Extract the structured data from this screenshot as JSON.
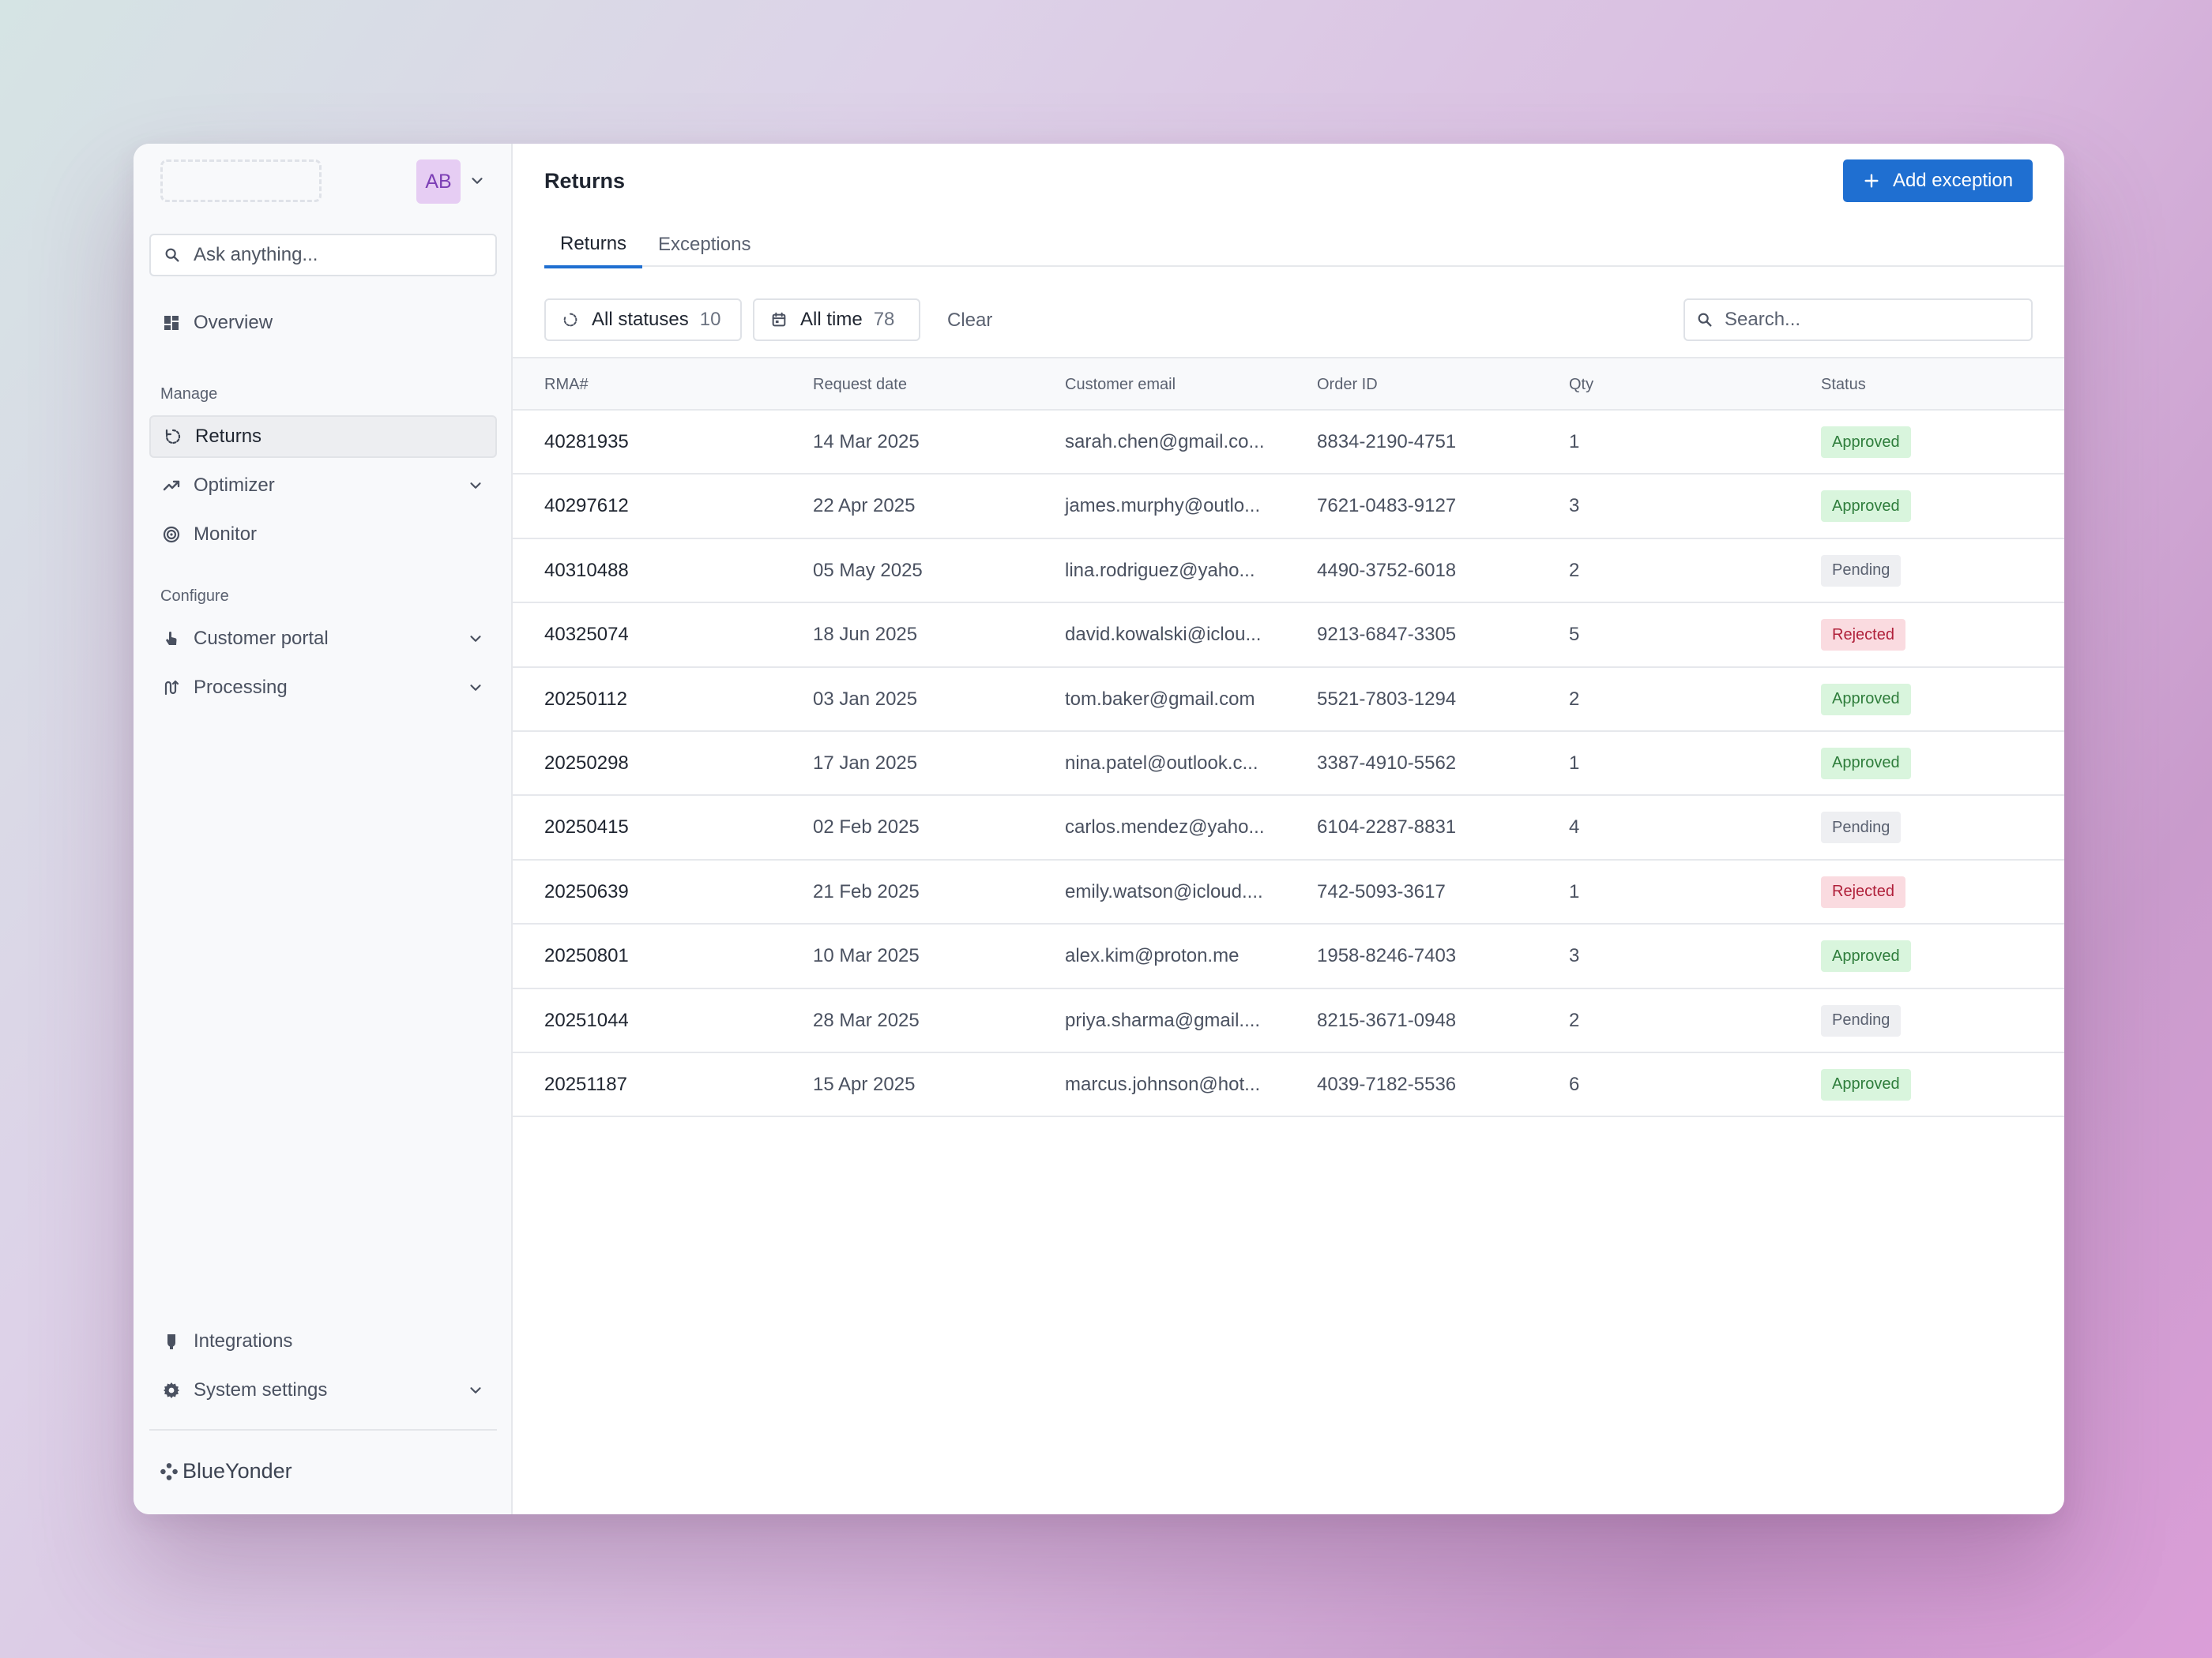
{
  "sidebar": {
    "avatar": "AB",
    "ask_placeholder": "Ask anything...",
    "overview": "Overview",
    "manage_label": "Manage",
    "returns": "Returns",
    "optimizer": "Optimizer",
    "monitor": "Monitor",
    "configure_label": "Configure",
    "customer_portal": "Customer portal",
    "processing": "Processing",
    "integrations": "Integrations",
    "system_settings": "System settings",
    "brand": "BlueYonder"
  },
  "header": {
    "title": "Returns",
    "add_button": "Add exception"
  },
  "tabs": [
    "Returns",
    "Exceptions"
  ],
  "filters": {
    "status_label": "All statuses",
    "status_count": "10",
    "time_label": "All time",
    "time_count": "78",
    "clear": "Clear",
    "search_placeholder": "Search..."
  },
  "table": {
    "columns": [
      "RMA#",
      "Request date",
      "Customer email",
      "Order ID",
      "Qty",
      "Status"
    ],
    "rows": [
      [
        "40281935",
        "14 Mar 2025",
        "sarah.chen@gmail.co...",
        "8834-2190-4751",
        "1",
        "Approved"
      ],
      [
        "40297612",
        "22 Apr 2025",
        "james.murphy@outlo...",
        "7621-0483-9127",
        "3",
        "Approved"
      ],
      [
        "40310488",
        "05 May 2025",
        "lina.rodriguez@yaho...",
        "4490-3752-6018",
        "2",
        "Pending"
      ],
      [
        "40325074",
        "18 Jun 2025",
        "david.kowalski@iclou...",
        "9213-6847-3305",
        "5",
        "Rejected"
      ],
      [
        "20250112",
        "03 Jan 2025",
        "tom.baker@gmail.com",
        "5521-7803-1294",
        "2",
        "Approved"
      ],
      [
        "20250298",
        "17 Jan 2025",
        "nina.patel@outlook.c...",
        "3387-4910-5562",
        "1",
        "Approved"
      ],
      [
        "20250415",
        "02 Feb 2025",
        "carlos.mendez@yaho...",
        "6104-2287-8831",
        "4",
        "Pending"
      ],
      [
        "20250639",
        "21 Feb 2025",
        "emily.watson@icloud....",
        "742-5093-3617",
        "1",
        "Rejected"
      ],
      [
        "20250801",
        "10 Mar 2025",
        "alex.kim@proton.me",
        "1958-8246-7403",
        "3",
        "Approved"
      ],
      [
        "20251044",
        "28 Mar 2025",
        "priya.sharma@gmail....",
        "8215-3671-0948",
        "2",
        "Pending"
      ],
      [
        "20251187",
        "15 Apr 2025",
        "marcus.johnson@hot...",
        "4039-7182-5536",
        "6",
        "Approved"
      ]
    ]
  },
  "colors": {
    "accent": "#1f6fd1",
    "approved_bg": "#d9f5dd",
    "approved_text": "#2e7d3b",
    "pending_bg": "#eeeff2",
    "pending_text": "#5a6170",
    "rejected_bg": "#fadbe0",
    "rejected_text": "#b0203a"
  }
}
